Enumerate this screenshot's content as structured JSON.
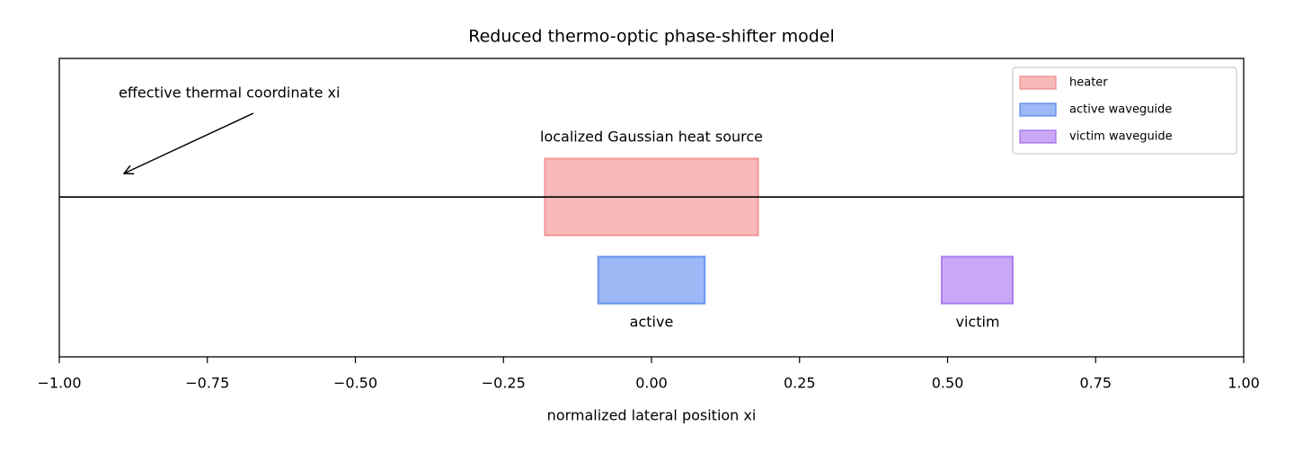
{
  "chart_data": {
    "type": "spans",
    "title": "Reduced thermo-optic phase-shifter model",
    "xlabel": "normalized lateral position xi",
    "xlim": [
      -1,
      1
    ],
    "xticks": [
      {
        "value": -1,
        "label": "−1.00"
      },
      {
        "value": -0.75,
        "label": "−0.75"
      },
      {
        "value": -0.5,
        "label": "−0.50"
      },
      {
        "value": -0.25,
        "label": "−0.25"
      },
      {
        "value": 0,
        "label": "0.00"
      },
      {
        "value": 0.25,
        "label": "0.25"
      },
      {
        "value": 0.5,
        "label": "0.50"
      },
      {
        "value": 0.75,
        "label": "0.75"
      },
      {
        "value": 1,
        "label": "1.00"
      }
    ],
    "ylim": [
      -0.75,
      0.65
    ],
    "hline": 0,
    "legend": "upper right",
    "series": [
      {
        "name": "heater",
        "color": "#f08080",
        "x": [
          -0.18,
          0.18
        ],
        "y": [
          -0.18,
          0.18
        ]
      },
      {
        "name": "active waveguide",
        "color": "#4a7fec",
        "x": [
          -0.09,
          0.09
        ],
        "y": [
          -0.5,
          -0.28
        ]
      },
      {
        "name": "victim waveguide",
        "color": "#9d62ec",
        "x": [
          0.49,
          0.61
        ],
        "y": [
          -0.5,
          -0.28
        ]
      }
    ],
    "annotations": [
      {
        "text": "effective thermal coordinate xi"
      },
      {
        "text": "localized Gaussian heat source"
      },
      {
        "text": "active"
      },
      {
        "text": "victim"
      }
    ]
  }
}
